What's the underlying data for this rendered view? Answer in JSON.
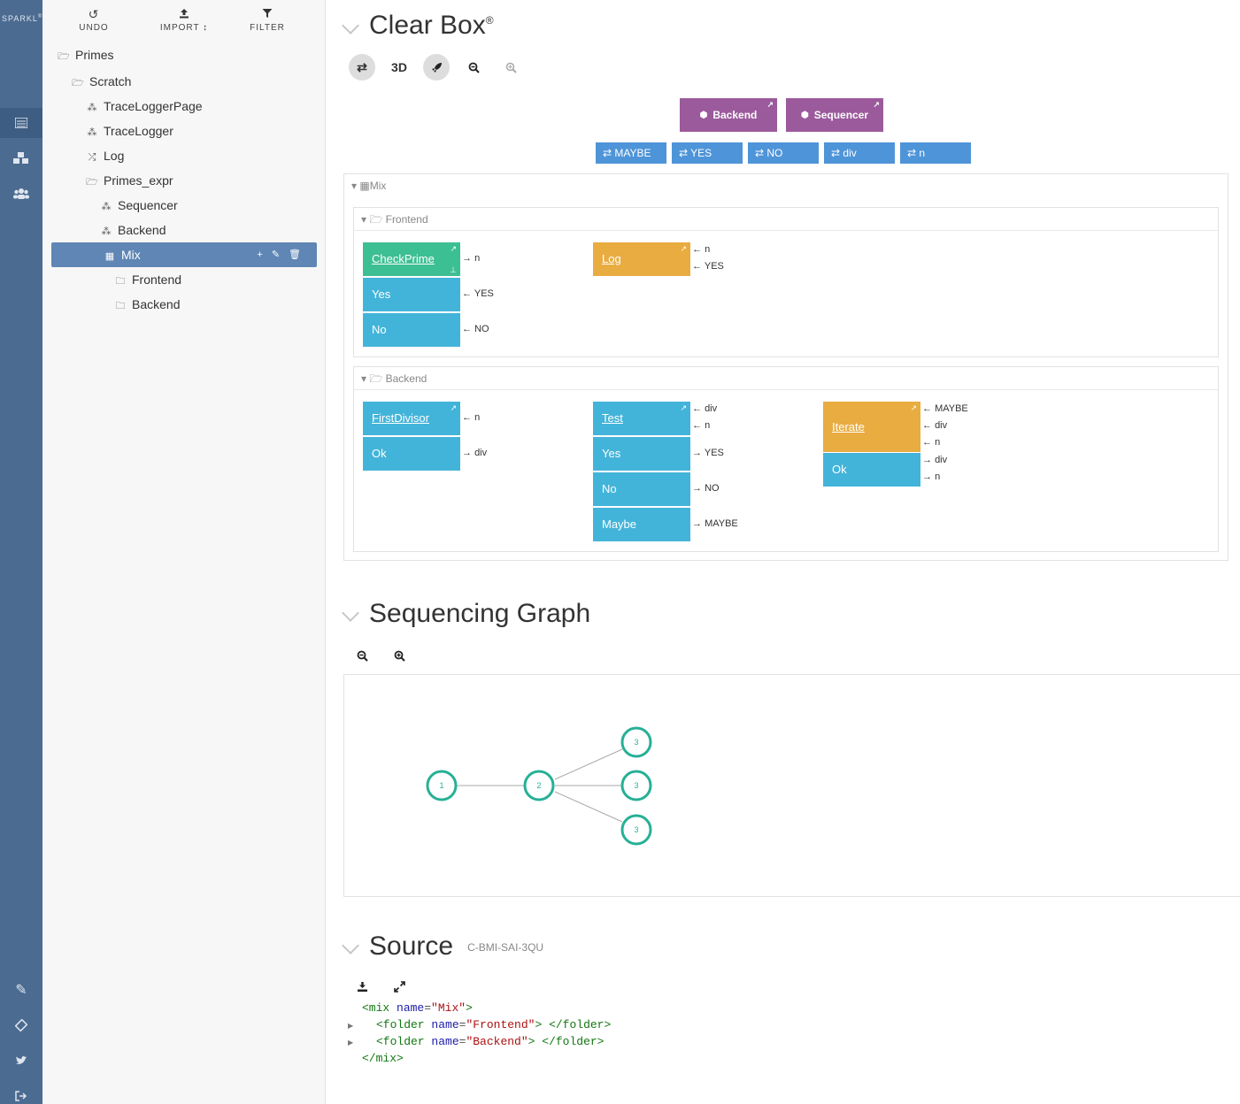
{
  "rail": {
    "logo": "SPARKL",
    "icons": [
      "list-icon",
      "cubes-icon",
      "users-icon",
      "pencil-icon",
      "ticket-icon",
      "twitter-icon",
      "signout-icon"
    ]
  },
  "toolbar": {
    "undo": "UNDO",
    "import": "IMPORT ↕",
    "filter": "FILTER"
  },
  "tree": {
    "primes": "Primes",
    "scratch": "Scratch",
    "trace_logger_page": "TraceLoggerPage",
    "trace_logger": "TraceLogger",
    "log": "Log",
    "primes_expr": "Primes_expr",
    "sequencer": "Sequencer",
    "backend": "Backend",
    "mix": "Mix",
    "frontend_folder": "Frontend",
    "backend_folder": "Backend"
  },
  "clearbox": {
    "title": "Clear Box",
    "reg": "®",
    "tool_3d": "3D",
    "services": [
      "Backend",
      "Sequencer"
    ],
    "fields": [
      "MAYBE",
      "YES",
      "NO",
      "div",
      "n"
    ],
    "mix_label": "Mix",
    "frontend_label": "Frontend",
    "backend_label": "Backend",
    "ops": {
      "checkprime": "CheckPrime",
      "yes": "Yes",
      "no": "No",
      "log": "Log",
      "firstdivisor": "FirstDivisor",
      "ok": "Ok",
      "test": "Test",
      "maybe": "Maybe",
      "iterate": "Iterate"
    },
    "ports": {
      "n": "n",
      "YES": "YES",
      "NO": "NO",
      "div": "div",
      "MAYBE": "MAYBE"
    }
  },
  "sequencing": {
    "title": "Sequencing Graph",
    "nodes": [
      "1",
      "2",
      "3",
      "3",
      "3"
    ]
  },
  "source": {
    "title": "Source",
    "id": "C-BMI-SAI-3QU",
    "line1": {
      "open": "<mix ",
      "attr": "name",
      "eq": "=",
      "val": "\"Mix\"",
      "close": ">"
    },
    "line2": {
      "open": "<folder ",
      "attr": "name",
      "eq": "=",
      "val": "\"Frontend\"",
      "close": "> </folder>"
    },
    "line3": {
      "open": "<folder ",
      "attr": "name",
      "eq": "=",
      "val": "\"Backend\"",
      "close": "> </folder>"
    },
    "line4": "</mix>"
  }
}
